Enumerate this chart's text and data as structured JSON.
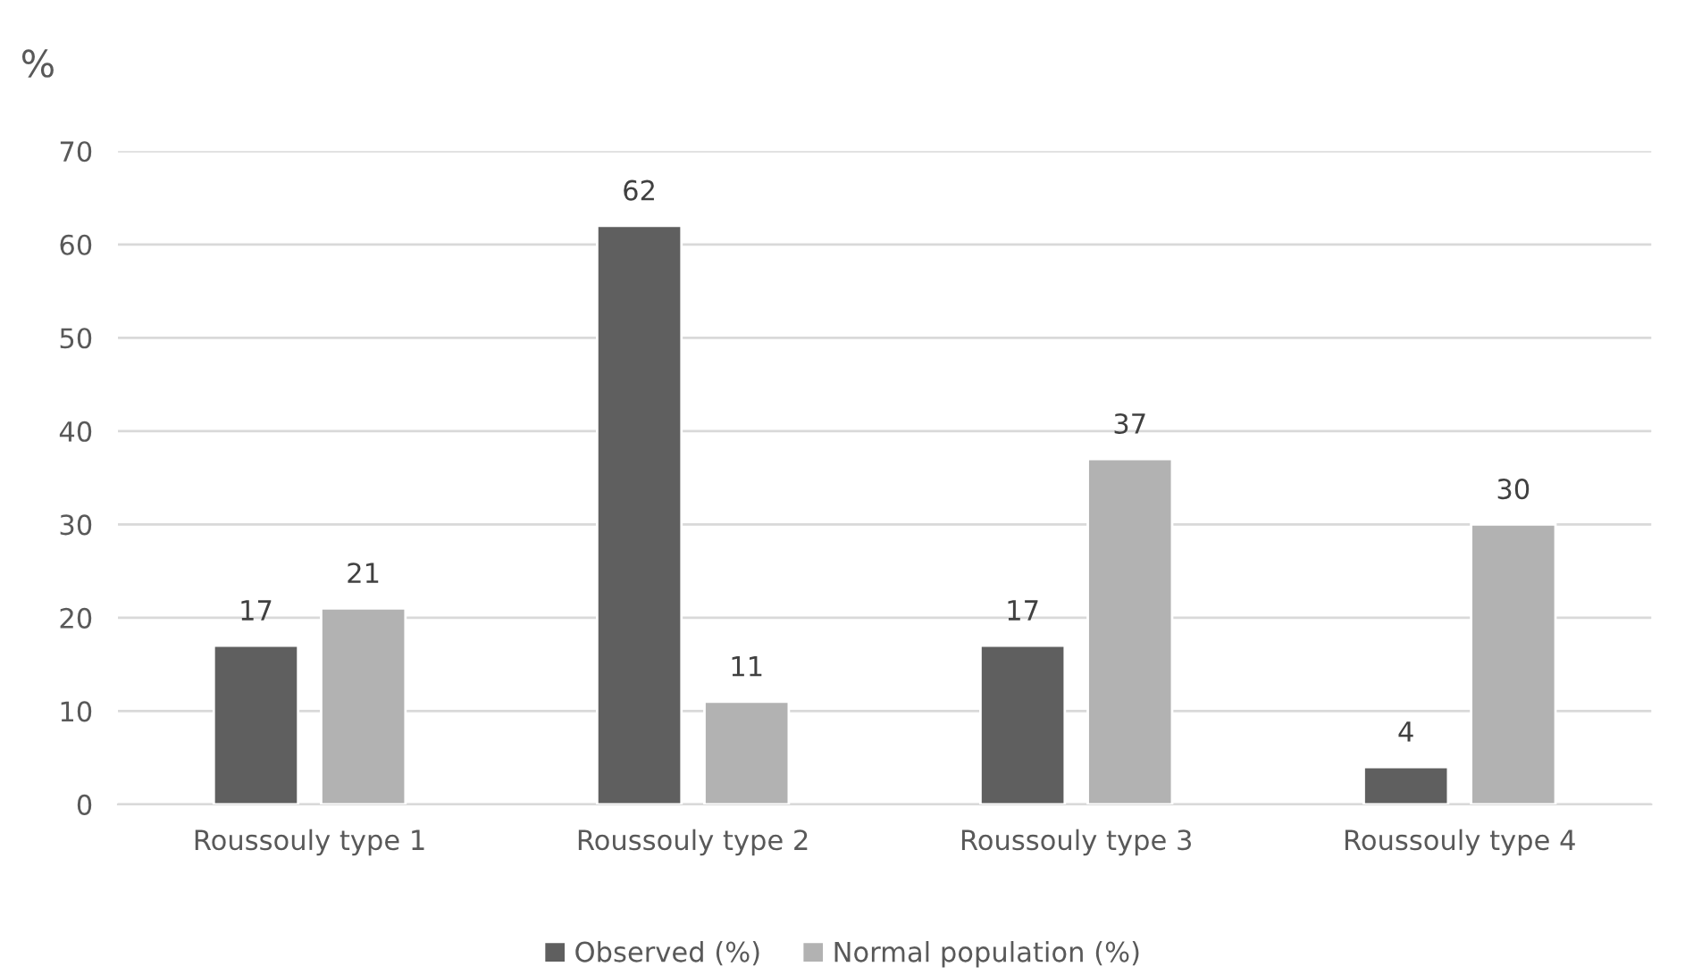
{
  "chart_data": {
    "type": "bar",
    "ylabel": "%",
    "categories": [
      "Roussouly type 1",
      "Roussouly type 2",
      "Roussouly type 3",
      "Roussouly type 4"
    ],
    "series": [
      {
        "name": "Observed (%)",
        "color": "#5f5f5f",
        "values": [
          17,
          62,
          17,
          4
        ]
      },
      {
        "name": "Normal population (%)",
        "color": "#b2b2b2",
        "values": [
          21,
          11,
          37,
          30
        ]
      }
    ],
    "ylim": [
      0,
      70
    ],
    "yticks": [
      0,
      10,
      20,
      30,
      40,
      50,
      60,
      70
    ],
    "grid": "y",
    "legend": "bottom",
    "data_labels": true
  }
}
